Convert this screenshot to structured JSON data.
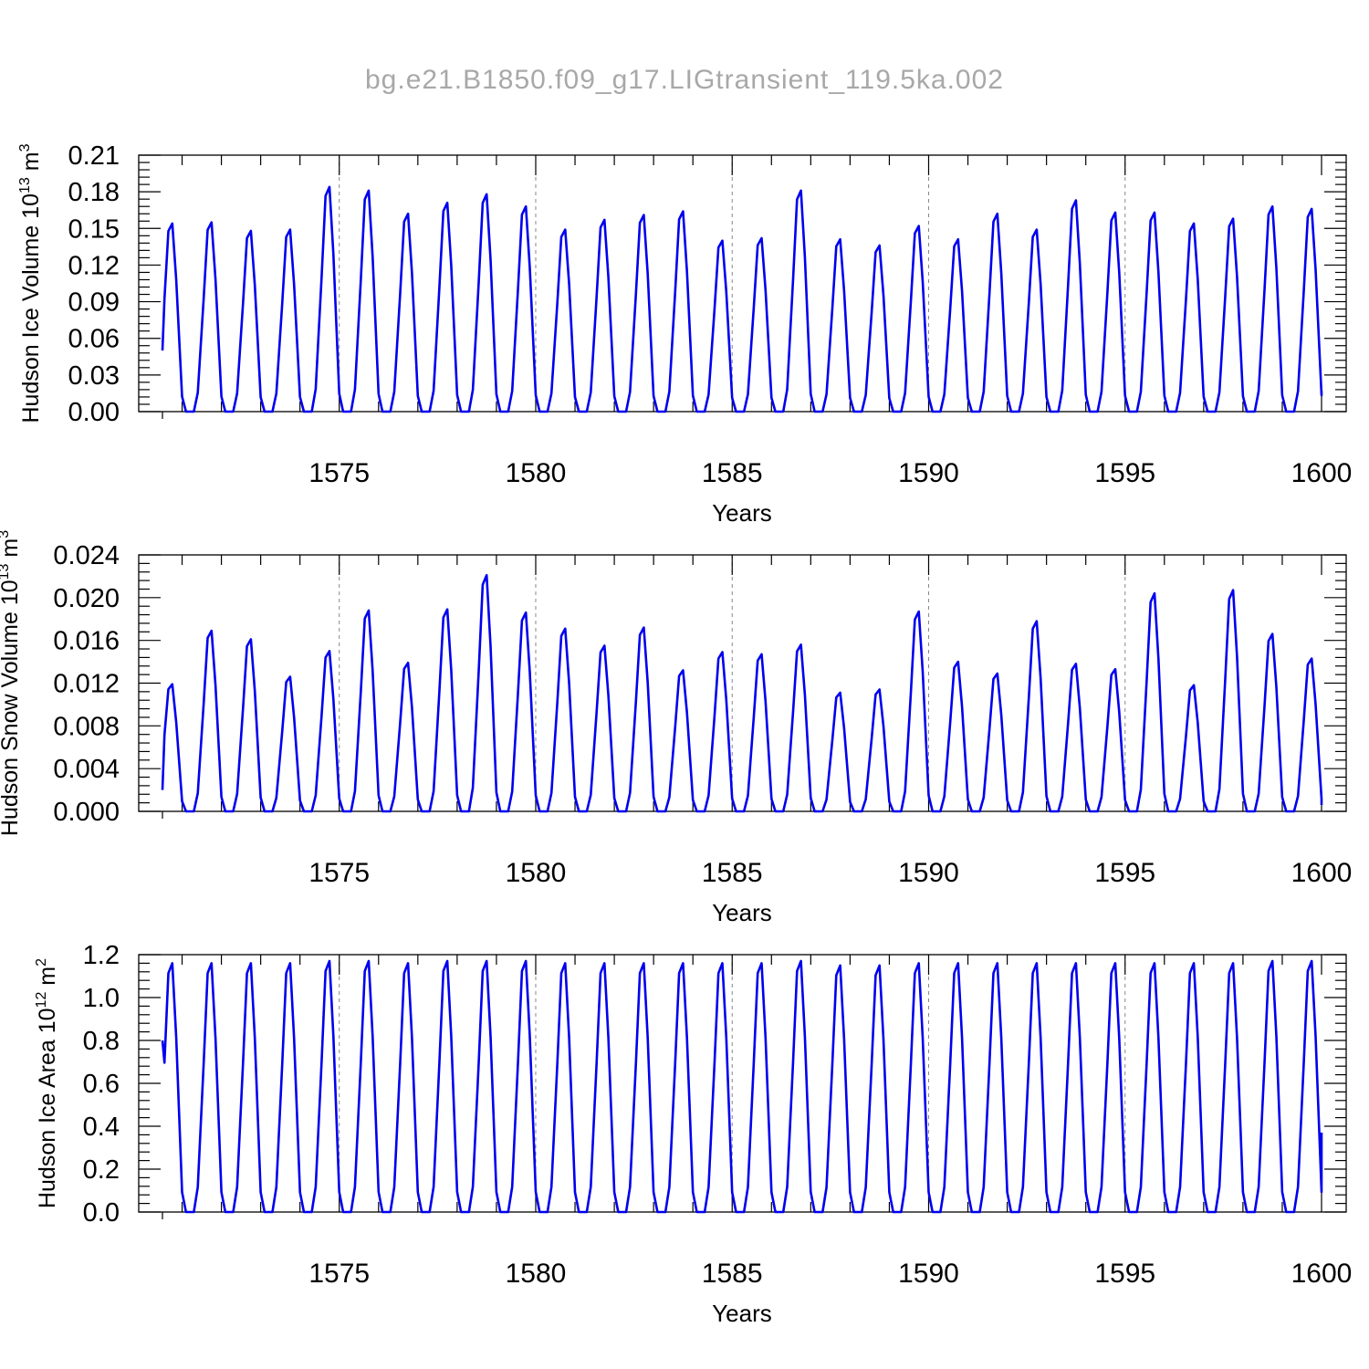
{
  "figure": {
    "title": "bg.e21.B1850.f09_g17.LIGtransient_119.5ka.002"
  },
  "colors": {
    "series": "#0000ee"
  },
  "chart_data": [
    {
      "type": "line",
      "title": "",
      "xlabel": "Years",
      "ylabel": "Hudson Ice Volume 10",
      "ylabel_exponent": "13",
      "ylabel_unit": "m",
      "ylabel_unit_exponent": "3",
      "xlim": [
        1570.5,
        1600
      ],
      "ylim": [
        0,
        0.21
      ],
      "yticks": [
        "0.00",
        "0.03",
        "0.06",
        "0.09",
        "0.12",
        "0.15",
        "0.18",
        "0.21"
      ],
      "xticks": [
        "1575",
        "1580",
        "1585",
        "1590",
        "1595",
        "1600"
      ],
      "grid": "dashed vertical at 1575, 1580, 1585, 1590, 1595",
      "series": [
        {
          "name": "Hudson Ice Volume",
          "peaks": [
            0.154,
            0.155,
            0.148,
            0.149,
            0.184,
            0.181,
            0.162,
            0.171,
            0.178,
            0.168,
            0.149,
            0.157,
            0.161,
            0.164,
            0.14,
            0.142,
            0.181,
            0.141,
            0.136,
            0.152,
            0.141,
            0.162,
            0.149,
            0.173,
            0.163,
            0.163,
            0.154,
            0.158,
            0.168,
            0.166
          ],
          "min": 0.0,
          "start": 0.05,
          "end": 0.017
        }
      ]
    },
    {
      "type": "line",
      "title": "",
      "xlabel": "Years",
      "ylabel": "Hudson Snow Volume 10",
      "ylabel_exponent": "13",
      "ylabel_unit": "m",
      "ylabel_unit_exponent": "3",
      "xlim": [
        1570.5,
        1600
      ],
      "ylim": [
        0,
        0.024
      ],
      "yticks": [
        "0.000",
        "0.004",
        "0.008",
        "0.012",
        "0.016",
        "0.020",
        "0.024"
      ],
      "xticks": [
        "1575",
        "1580",
        "1585",
        "1590",
        "1595",
        "1600"
      ],
      "grid": "dashed vertical at 1575, 1580, 1585, 1590, 1595",
      "series": [
        {
          "name": "Hudson Snow Volume",
          "peaks": [
            0.0119,
            0.0169,
            0.0161,
            0.0126,
            0.015,
            0.0188,
            0.0139,
            0.0189,
            0.0221,
            0.0186,
            0.0171,
            0.0155,
            0.0172,
            0.0132,
            0.0149,
            0.0147,
            0.0156,
            0.0111,
            0.0114,
            0.0187,
            0.014,
            0.0129,
            0.0178,
            0.0138,
            0.0133,
            0.0204,
            0.0118,
            0.0207,
            0.0166,
            0.0143
          ],
          "min": 0.0,
          "start": 0.002,
          "end": 0.0006
        }
      ]
    },
    {
      "type": "line",
      "title": "",
      "xlabel": "Years",
      "ylabel": "Hudson Ice Area 10",
      "ylabel_exponent": "12",
      "ylabel_unit": "m",
      "ylabel_unit_exponent": "2",
      "xlim": [
        1570.5,
        1600
      ],
      "ylim": [
        0,
        1.2
      ],
      "yticks": [
        "0.0",
        "0.2",
        "0.4",
        "0.6",
        "0.8",
        "1.0",
        "1.2"
      ],
      "xticks": [
        "1575",
        "1580",
        "1585",
        "1590",
        "1595",
        "1600"
      ],
      "grid": "dashed vertical at 1575, 1580, 1585, 1590, 1595",
      "series": [
        {
          "name": "Hudson Ice Area",
          "peaks": [
            1.16,
            1.16,
            1.16,
            1.16,
            1.17,
            1.17,
            1.16,
            1.17,
            1.17,
            1.17,
            1.16,
            1.16,
            1.16,
            1.16,
            1.16,
            1.16,
            1.17,
            1.15,
            1.15,
            1.16,
            1.16,
            1.16,
            1.16,
            1.16,
            1.16,
            1.16,
            1.16,
            1.16,
            1.17,
            1.17
          ],
          "min": 0.0,
          "start": 0.8,
          "end": 0.37
        }
      ]
    }
  ]
}
